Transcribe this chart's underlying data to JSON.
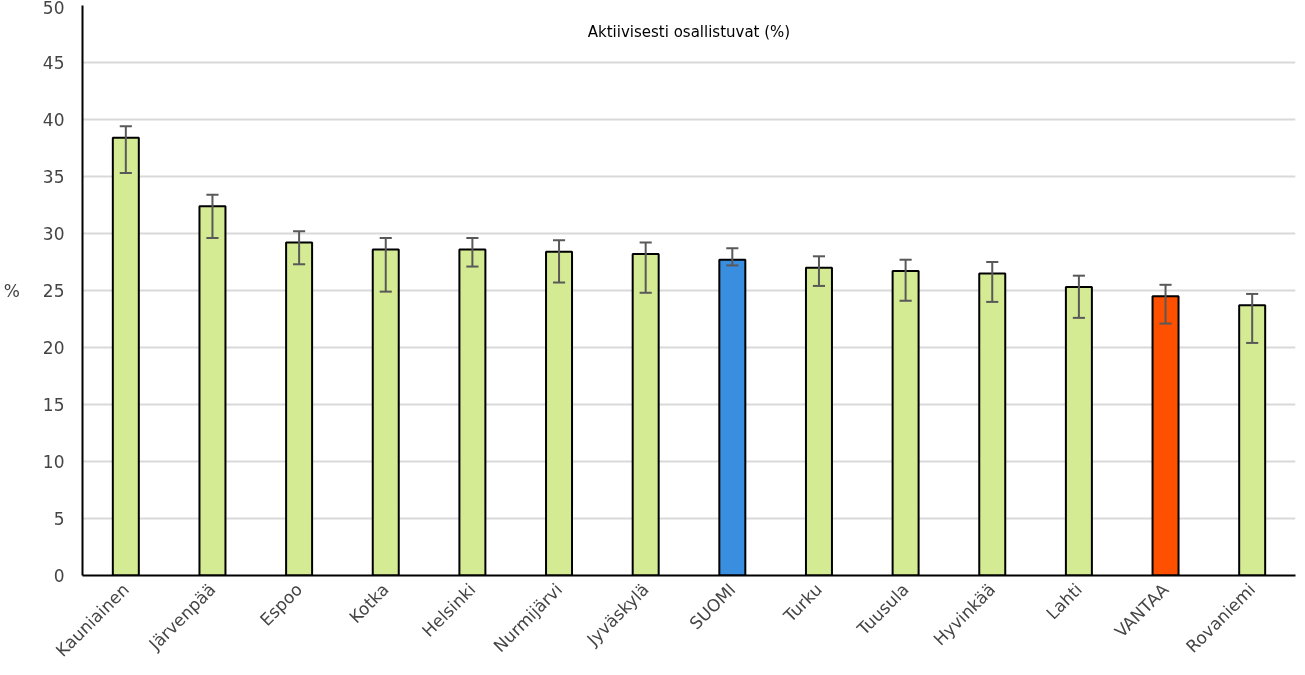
{
  "chart_data": {
    "type": "bar",
    "title": "Aktiivisesti osallistuvat (%)",
    "ylabel": "%",
    "categories": [
      "Kauniainen",
      "Järvenpää",
      "Espoo",
      "Kotka",
      "Helsinki",
      "Nurmijärvi",
      "Jyväskylä",
      "SUOMI",
      "Turku",
      "Tuusula",
      "Hyvinkää",
      "Lahti",
      "VANTAA",
      "Rovaniemi"
    ],
    "values": [
      38.4,
      32.4,
      29.2,
      28.6,
      28.6,
      28.4,
      28.2,
      27.7,
      27.0,
      26.7,
      26.5,
      25.3,
      24.5,
      23.7
    ],
    "colors": [
      "#d4ea93",
      "#d4ea93",
      "#d4ea93",
      "#d4ea93",
      "#d4ea93",
      "#d4ea93",
      "#d4ea93",
      "#3a8ee0",
      "#d4ea93",
      "#d4ea93",
      "#d4ea93",
      "#d4ea93",
      "#ff5000",
      "#d4ea93"
    ],
    "errors": [
      [
        35.3,
        39.4
      ],
      [
        29.6,
        33.4
      ],
      [
        27.3,
        30.2
      ],
      [
        24.9,
        29.6
      ],
      [
        27.1,
        29.6
      ],
      [
        25.7,
        29.4
      ],
      [
        24.8,
        29.2
      ],
      [
        27.2,
        28.7
      ],
      [
        25.4,
        28.0
      ],
      [
        24.1,
        27.7
      ],
      [
        24.0,
        27.5
      ],
      [
        22.6,
        26.3
      ],
      [
        22.1,
        25.5
      ],
      [
        20.4,
        24.7
      ]
    ],
    "ylim": [
      0,
      50
    ],
    "yticks": [
      0,
      5,
      10,
      15,
      20,
      25,
      30,
      35,
      40,
      45,
      50
    ],
    "grid": "y"
  }
}
